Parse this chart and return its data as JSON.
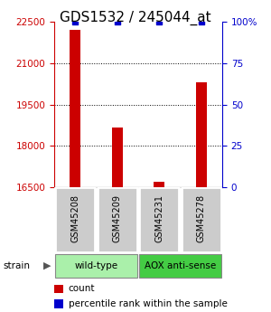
{
  "title": "GDS1532 / 245044_at",
  "samples": [
    "GSM45208",
    "GSM45209",
    "GSM45231",
    "GSM45278"
  ],
  "counts": [
    22200,
    18650,
    16700,
    20300
  ],
  "percentiles": [
    100,
    100,
    100,
    100
  ],
  "groups": [
    {
      "label": "wild-type",
      "samples": [
        0,
        1
      ],
      "color": "#aaf0aa"
    },
    {
      "label": "AOX anti-sense",
      "samples": [
        2,
        3
      ],
      "color": "#44cc44"
    }
  ],
  "group_label": "strain",
  "ylim_left": [
    16500,
    22500
  ],
  "ylim_right": [
    0,
    100
  ],
  "yticks_left": [
    16500,
    18000,
    19500,
    21000,
    22500
  ],
  "yticks_right": [
    0,
    25,
    50,
    75,
    100
  ],
  "ytick_right_labels": [
    "0",
    "25",
    "50",
    "75",
    "100%"
  ],
  "bar_color": "#cc0000",
  "dot_color": "#0000cc",
  "bar_width": 0.25,
  "title_fontsize": 11,
  "tick_fontsize": 7.5,
  "label_fontsize": 7.5,
  "sample_box_color": "#cccccc",
  "sample_fontsize": 7,
  "legend_fontsize": 7.5
}
